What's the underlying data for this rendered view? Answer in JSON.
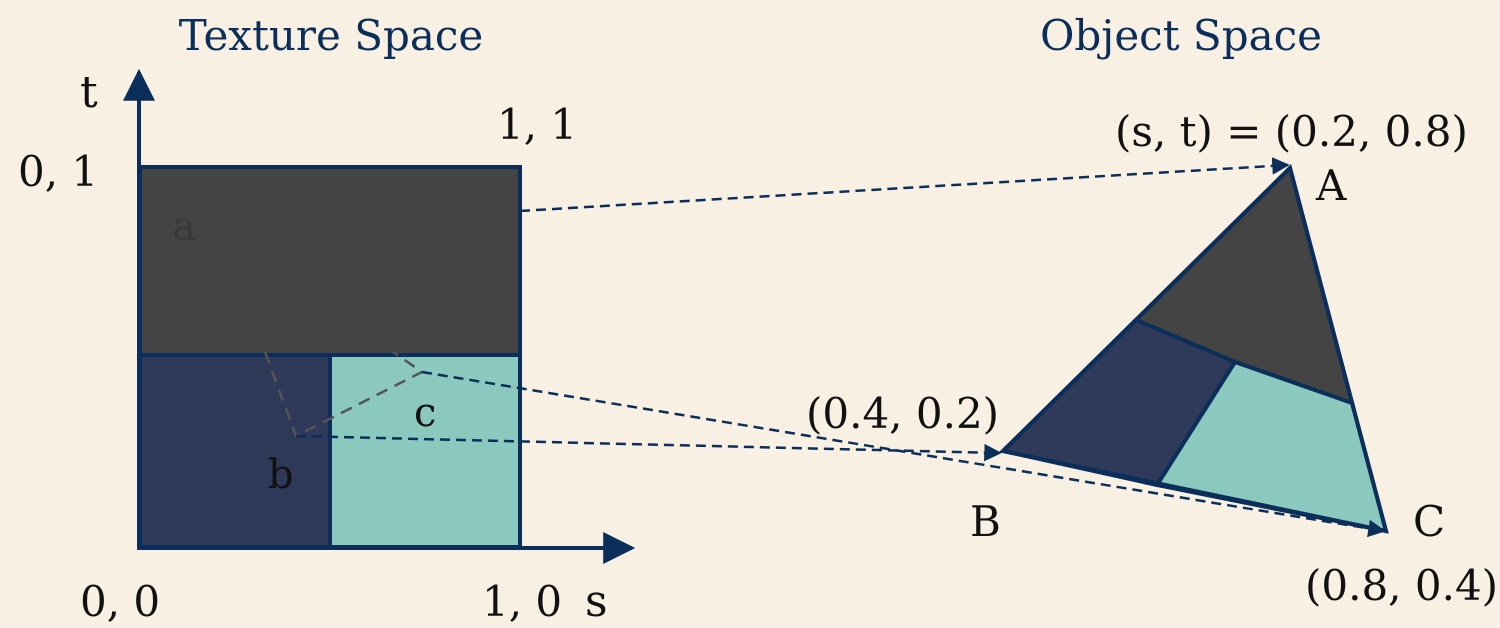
{
  "texture_space": {
    "title": "Texture Space",
    "axis_t": "t",
    "axis_s": "s",
    "label_0_1": "0, 1",
    "label_1_1": "1, 1",
    "label_0_0": "0, 0",
    "label_1_0": "1, 0",
    "region_a": "a",
    "region_b": "b",
    "region_c": "c"
  },
  "object_space": {
    "title": "Object Space",
    "vertex_a_label": "A",
    "vertex_b_label": "B",
    "vertex_c_label": "C",
    "vertex_a_coord": "(s, t) = (0.2, 0.8)",
    "vertex_b_coord": "(0.4, 0.2)",
    "vertex_c_coord": "(0.8, 0.4)"
  },
  "colors": {
    "background": "#f7f0e3",
    "dark_region": "#444444",
    "navy_region": "#2f3a5a",
    "teal_region": "#8bc8be",
    "outline": "#0b2f5a"
  }
}
